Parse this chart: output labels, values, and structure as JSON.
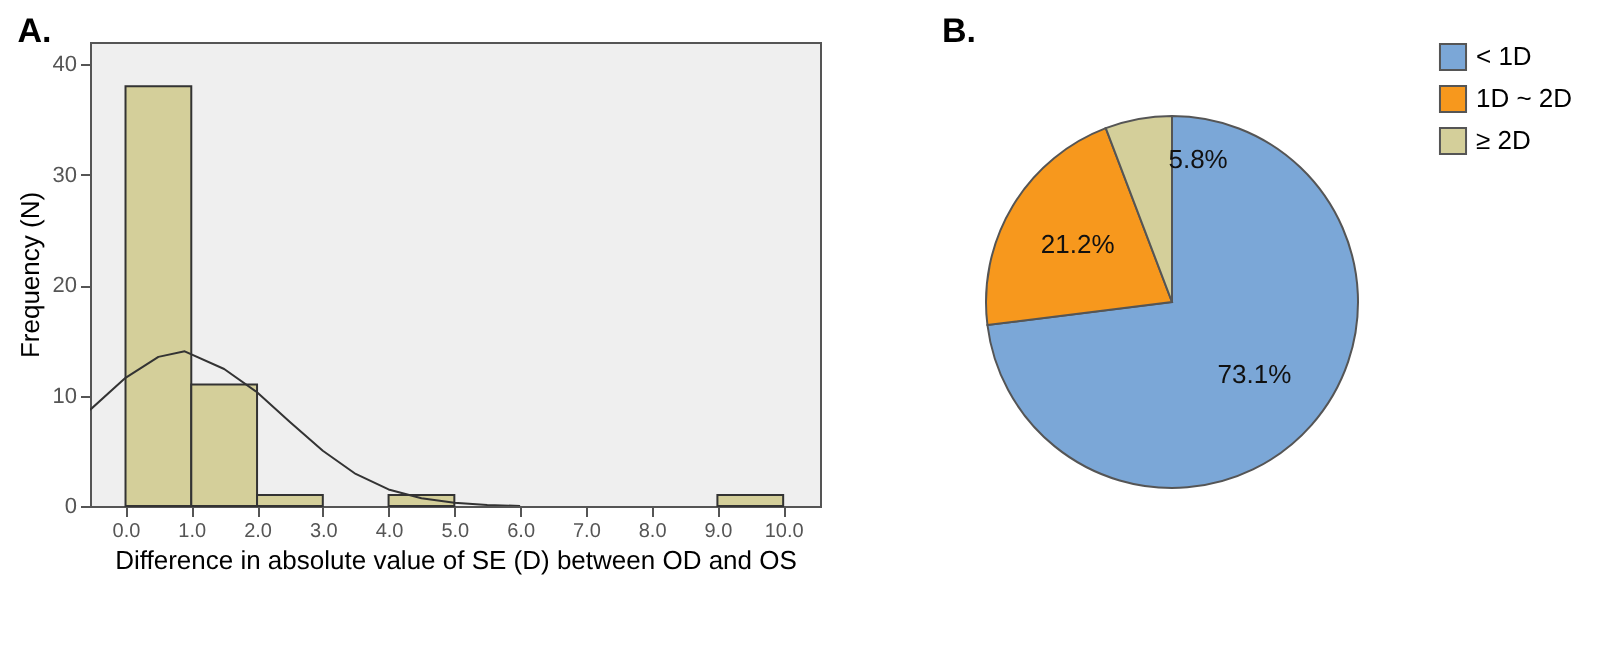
{
  "chart_data": [
    {
      "type": "histogram",
      "title": "A.",
      "xlabel": "Difference in absolute value of SE (D) between OD and OS",
      "ylabel": "Frequency (N)",
      "bins": [
        0,
        1,
        2,
        3,
        4,
        5,
        6,
        7,
        8,
        9,
        10
      ],
      "values": [
        38,
        11,
        1,
        0,
        1,
        0,
        0,
        0,
        0,
        1
      ],
      "color": "#d4cf9a",
      "series": [
        {
          "type": "line",
          "color": "#333333",
          "x": [
            -0.54,
            0,
            0.5,
            0.9,
            1.5,
            2,
            2.5,
            3,
            3.5,
            4,
            4.5,
            5,
            5.5,
            6
          ],
          "values": [
            8.7,
            11.6,
            13.5,
            14,
            12.4,
            10.3,
            7.6,
            5.0,
            2.9,
            1.5,
            0.7,
            0.3,
            0.1,
            0
          ]
        }
      ],
      "xlim": [
        -0.54,
        10.56
      ],
      "xticks": [
        {
          "value": 0,
          "label": "0.0"
        },
        {
          "value": 1,
          "label": "1.0"
        },
        {
          "value": 2,
          "label": "2.0"
        },
        {
          "value": 3,
          "label": "3.0"
        },
        {
          "value": 4,
          "label": "4.0"
        },
        {
          "value": 5,
          "label": "5.0"
        },
        {
          "value": 6,
          "label": "6.0"
        },
        {
          "value": 7,
          "label": "7.0"
        },
        {
          "value": 8,
          "label": "8.0"
        },
        {
          "value": 9,
          "label": "9.0"
        },
        {
          "value": 10,
          "label": "10.0"
        }
      ],
      "ylim": [
        0,
        42
      ],
      "yticks": [
        0,
        10,
        20,
        30,
        40
      ],
      "grid": false
    },
    {
      "type": "pie",
      "title": "B.",
      "categories": [
        "< 1D",
        "1D ~ 2D",
        "≥ 2D"
      ],
      "values": [
        73.1,
        21.2,
        5.8
      ],
      "colors": [
        "#7ba7d7",
        "#f7981d",
        "#d4cf9a"
      ],
      "value_labels": [
        "73.1%",
        "21.2%",
        "5.8%"
      ],
      "legend": "top right"
    }
  ]
}
